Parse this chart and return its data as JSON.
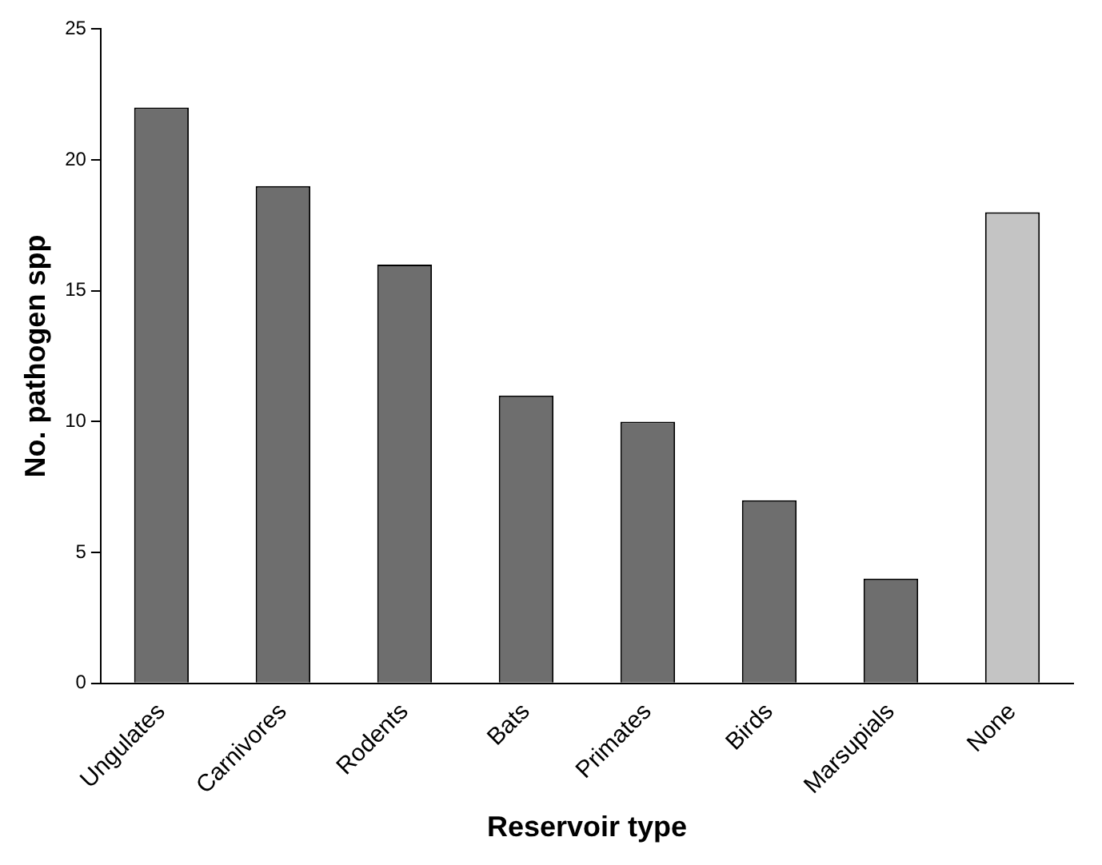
{
  "chart_data": {
    "type": "bar",
    "xlabel": "Reservoir type",
    "ylabel": "No. pathogen spp",
    "categories": [
      "Ungulates",
      "Carnivores",
      "Rodents",
      "Bats",
      "Primates",
      "Birds",
      "Marsupials",
      "None"
    ],
    "values": [
      22,
      19,
      16,
      11,
      10,
      7,
      4,
      18
    ],
    "colors": [
      "#6e6e6e",
      "#6e6e6e",
      "#6e6e6e",
      "#6e6e6e",
      "#6e6e6e",
      "#6e6e6e",
      "#6e6e6e",
      "#c4c4c4"
    ],
    "ylim": [
      0,
      25
    ],
    "yticks": [
      0,
      5,
      10,
      15,
      20,
      25
    ],
    "grid": false,
    "legend": false
  }
}
